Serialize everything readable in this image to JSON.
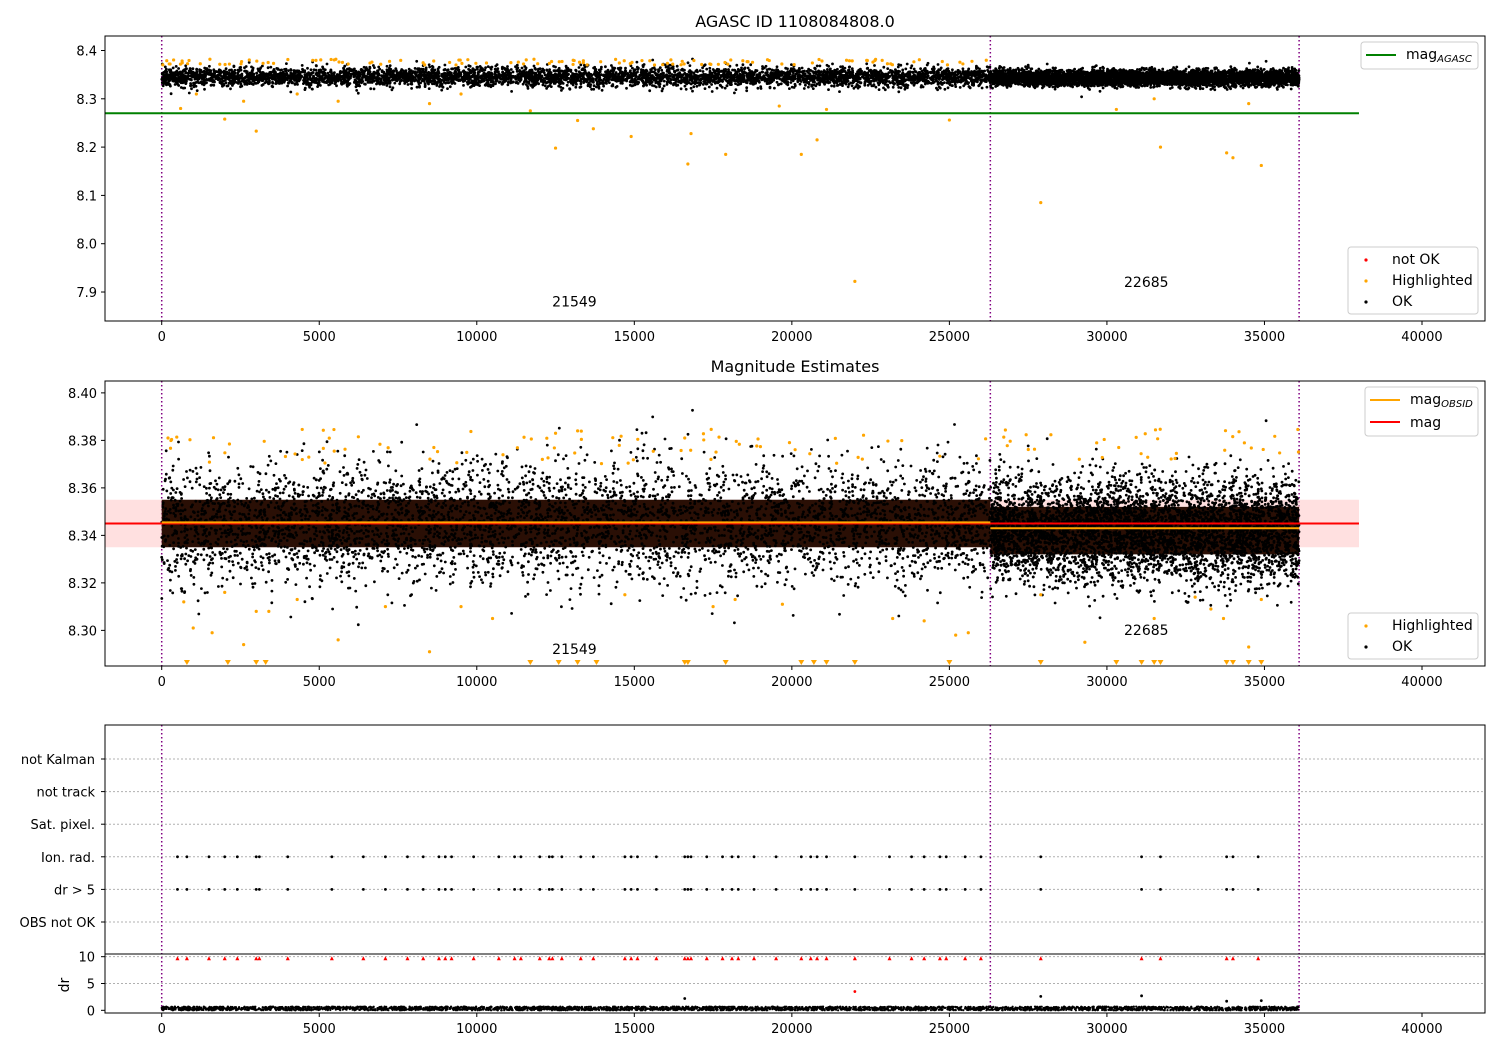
{
  "chart_data": [
    {
      "type": "scatter",
      "title": "AGASC ID 1108084808.0",
      "xlim": [
        -1800,
        42000
      ],
      "ylim": [
        7.84,
        8.43
      ],
      "xticks": [
        0,
        5000,
        10000,
        15000,
        20000,
        25000,
        30000,
        35000,
        40000
      ],
      "yticks": [
        7.9,
        8.0,
        8.1,
        8.2,
        8.3,
        8.4
      ],
      "grid": false,
      "obsid_boundaries": [
        0,
        26300,
        36100
      ],
      "obsid_labels": [
        {
          "text": "21549",
          "x": 13100,
          "y": 7.87
        },
        {
          "text": "22685",
          "x": 31250,
          "y": 7.91
        }
      ],
      "reference_lines": [
        {
          "name": "mag_AGASC",
          "y": 8.27,
          "x_range": [
            -1800,
            38000
          ],
          "color": "#008000"
        }
      ],
      "series": [
        {
          "name": "not OK",
          "color": "#ff0000",
          "points": []
        },
        {
          "name": "Highlighted",
          "color": "#ffa500",
          "points": [
            [
              600,
              8.28
            ],
            [
              1100,
              8.31
            ],
            [
              2000,
              8.258
            ],
            [
              2600,
              8.295
            ],
            [
              3000,
              8.233
            ],
            [
              4300,
              8.31
            ],
            [
              5600,
              8.295
            ],
            [
              8500,
              8.29
            ],
            [
              9500,
              8.31
            ],
            [
              11700,
              8.275
            ],
            [
              12500,
              8.198
            ],
            [
              13200,
              8.255
            ],
            [
              13700,
              8.238
            ],
            [
              14900,
              8.222
            ],
            [
              16700,
              8.165
            ],
            [
              16800,
              8.228
            ],
            [
              17900,
              8.185
            ],
            [
              19600,
              8.285
            ],
            [
              20300,
              8.185
            ],
            [
              20800,
              8.215
            ],
            [
              21100,
              8.278
            ],
            [
              22000,
              7.922
            ],
            [
              25000,
              8.256
            ],
            [
              27900,
              8.085
            ],
            [
              30300,
              8.278
            ],
            [
              31500,
              8.3
            ],
            [
              31700,
              8.2
            ],
            [
              33800,
              8.188
            ],
            [
              34000,
              8.178
            ],
            [
              34500,
              8.29
            ],
            [
              34900,
              8.162
            ]
          ]
        },
        {
          "name": "OK",
          "color": "#000000",
          "band": [
            {
              "x_range": [
                0,
                26300
              ],
              "center": 8.345,
              "half_width": 0.022
            },
            {
              "x_range": [
                26300,
                36100
              ],
              "center": 8.343,
              "half_width": 0.018
            }
          ]
        }
      ],
      "legend": [
        {
          "label": "mag",
          "sub": "AGASC",
          "kind": "line",
          "color": "#008000"
        },
        {
          "label": "not OK",
          "kind": "marker",
          "color": "#ff0000"
        },
        {
          "label": "Highlighted",
          "kind": "marker",
          "color": "#ffa500"
        },
        {
          "label": "OK",
          "kind": "marker",
          "color": "#000000"
        }
      ]
    },
    {
      "type": "scatter",
      "title": "Magnitude Estimates",
      "xlim": [
        -1800,
        42000
      ],
      "ylim": [
        8.285,
        8.405
      ],
      "xticks": [
        0,
        5000,
        10000,
        15000,
        20000,
        25000,
        30000,
        35000,
        40000
      ],
      "yticks": [
        8.3,
        8.32,
        8.34,
        8.36,
        8.38,
        8.4
      ],
      "grid": false,
      "obsid_boundaries": [
        0,
        26300,
        36100
      ],
      "obsid_labels": [
        {
          "text": "21549",
          "x": 13100,
          "y": 8.29
        },
        {
          "text": "22685",
          "x": 31250,
          "y": 8.298
        }
      ],
      "reference_band": {
        "y_range": [
          8.335,
          8.355
        ],
        "x_range": [
          -1800,
          38000
        ],
        "color": "#ffcccc"
      },
      "reference_lines": [
        {
          "name": "mag",
          "y": 8.345,
          "x_range": [
            -1800,
            38000
          ],
          "color": "#ff0000"
        },
        {
          "name": "mag_OBSID",
          "y": 8.3455,
          "x_range": [
            0,
            26300
          ],
          "color": "#ffa500"
        },
        {
          "name": "mag_OBSID",
          "y": 8.343,
          "x_range": [
            26300,
            36100
          ],
          "color": "#ffa500"
        }
      ],
      "series": [
        {
          "name": "Highlighted",
          "color": "#ffa500",
          "points": [
            [
              200,
              8.381
            ],
            [
              700,
              8.312
            ],
            [
              1000,
              8.301
            ],
            [
              1600,
              8.299
            ],
            [
              2000,
              8.316
            ],
            [
              2600,
              8.294
            ],
            [
              3000,
              8.308
            ],
            [
              3400,
              8.308
            ],
            [
              4300,
              8.313
            ],
            [
              5600,
              8.296
            ],
            [
              7100,
              8.31
            ],
            [
              8500,
              8.291
            ],
            [
              9500,
              8.31
            ],
            [
              10500,
              8.305
            ],
            [
              12500,
              8.383
            ],
            [
              13200,
              8.384
            ],
            [
              14700,
              8.315
            ],
            [
              16600,
              8.381
            ],
            [
              17500,
              8.31
            ],
            [
              18200,
              8.313
            ],
            [
              19700,
              8.311
            ],
            [
              23200,
              8.305
            ],
            [
              24200,
              8.304
            ],
            [
              25200,
              8.298
            ],
            [
              25600,
              8.299
            ],
            [
              27900,
              8.315
            ],
            [
              29300,
              8.295
            ],
            [
              31500,
              8.305
            ],
            [
              32800,
              8.314
            ],
            [
              33300,
              8.309
            ],
            [
              33700,
              8.305
            ],
            [
              34500,
              8.293
            ],
            [
              34900,
              8.313
            ]
          ]
        },
        {
          "name": "Highlighted (below axis)",
          "color": "#ffa500",
          "marker": "triangle-down",
          "x": [
            800,
            2100,
            3000,
            3300,
            11700,
            12600,
            13200,
            13800,
            16600,
            16700,
            17900,
            20300,
            20700,
            21100,
            22000,
            25000,
            27900,
            30300,
            31100,
            31500,
            31700,
            33800,
            34000,
            34500,
            34900
          ]
        },
        {
          "name": "OK",
          "color": "#000000",
          "band": [
            {
              "x_range": [
                0,
                26300
              ],
              "center": 8.345,
              "half_width": 0.028
            },
            {
              "x_range": [
                26300,
                36100
              ],
              "center": 8.342,
              "half_width": 0.024
            }
          ]
        }
      ],
      "legend": [
        {
          "label": "mag",
          "sub": "OBSID",
          "kind": "line",
          "color": "#ffa500"
        },
        {
          "label": "mag",
          "kind": "line",
          "color": "#ff0000"
        },
        {
          "label": "Highlighted",
          "kind": "marker",
          "color": "#ffa500"
        },
        {
          "label": "OK",
          "kind": "marker",
          "color": "#000000"
        }
      ]
    },
    {
      "type": "scatter",
      "title": "",
      "xlim": [
        -1800,
        42000
      ],
      "categories": [
        "not Kalman",
        "not track",
        "Sat. pixel.",
        "Ion. rad.",
        "dr > 5",
        "OBS not OK"
      ],
      "grid": true,
      "obsid_boundaries": [
        0,
        26300,
        36100
      ],
      "flag_x": [
        500,
        800,
        1500,
        2000,
        2400,
        3000,
        3100,
        4000,
        5400,
        6400,
        7100,
        7800,
        8300,
        8800,
        9000,
        9200,
        9900,
        10700,
        11200,
        11400,
        12000,
        12300,
        12400,
        12700,
        13300,
        13700,
        14700,
        14900,
        15100,
        15700,
        16600,
        16700,
        16800,
        17300,
        17800,
        18100,
        18300,
        18800,
        19500,
        20300,
        20600,
        20800,
        21100,
        22000,
        23100,
        23800,
        24200,
        24700,
        24900,
        25500,
        26000,
        27900,
        31100,
        31700,
        33800,
        34000,
        34800
      ],
      "flag_rows": [
        "Ion. rad.",
        "dr > 5"
      ],
      "dr_axis": {
        "ylabel": "dr",
        "ylim": [
          -0.5,
          10.5
        ],
        "yticks": [
          0,
          5,
          10
        ],
        "clipped_color": "#ff0000",
        "outliers": [
          [
            16600,
            2.2
          ],
          [
            22000,
            3.5
          ],
          [
            27900,
            2.6
          ],
          [
            31100,
            2.7
          ],
          [
            33800,
            1.7
          ],
          [
            34900,
            1.8
          ]
        ],
        "baseline_max": 0.7
      }
    }
  ]
}
